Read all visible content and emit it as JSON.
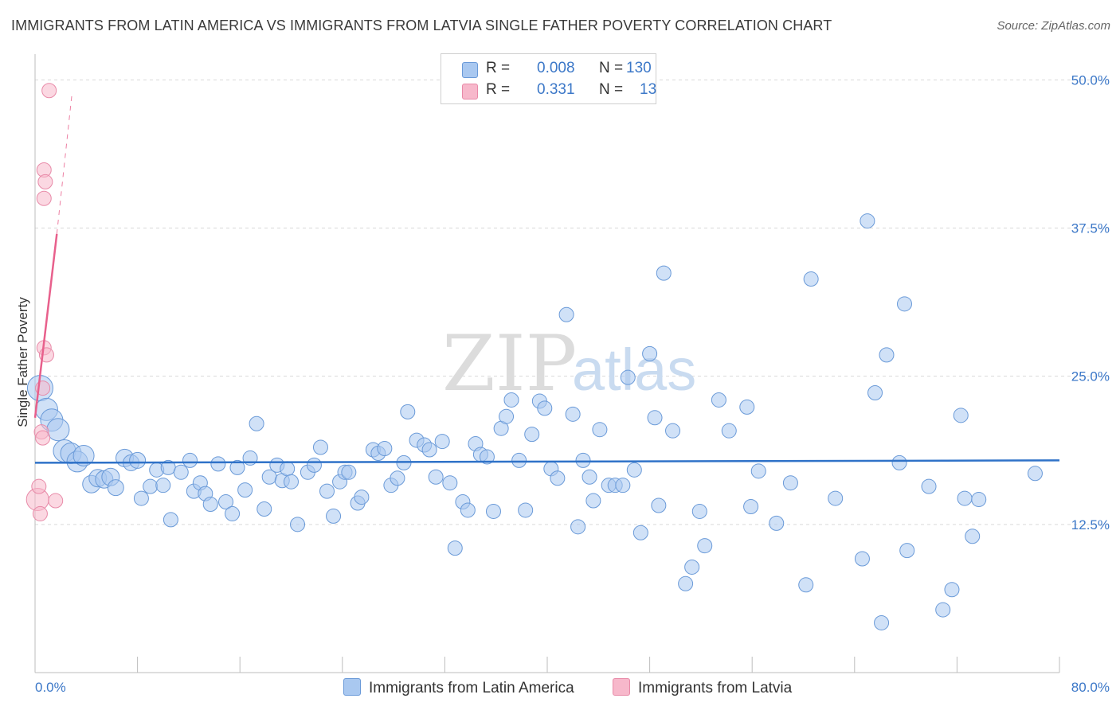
{
  "title": "IMMIGRANTS FROM LATIN AMERICA VS IMMIGRANTS FROM LATVIA SINGLE FATHER POVERTY CORRELATION CHART",
  "source": "Source: ZipAtlas.com",
  "watermark": {
    "zip": "ZIP",
    "atlas": "atlas"
  },
  "legend": {
    "rows": [
      {
        "r_label": "R =",
        "r_value": "0.008",
        "n_label": "N =",
        "n_value": "130",
        "color": "#a9c8f0"
      },
      {
        "r_label": "R =",
        "r_value": "0.331",
        "n_label": "N =",
        "n_value": "13",
        "color": "#f7b8cb"
      }
    ]
  },
  "bottom_legend": {
    "series1": "Immigrants from Latin America",
    "series2": "Immigrants from Latvia"
  },
  "chart_data": {
    "type": "scatter",
    "title": "IMMIGRANTS FROM LATIN AMERICA VS IMMIGRANTS FROM LATVIA SINGLE FATHER POVERTY CORRELATION CHART",
    "xlabel": "",
    "ylabel": "Single Father Poverty",
    "xlim": [
      0,
      80
    ],
    "ylim": [
      0,
      51.5
    ],
    "x_tick_labels": [
      "0.0%",
      "80.0%"
    ],
    "y_ticks": [
      12.5,
      25.0,
      37.5,
      50.0
    ],
    "y_tick_labels": [
      "12.5%",
      "25.0%",
      "37.5%",
      "50.0%"
    ],
    "grid": "horizontal dashed",
    "colors": {
      "blue_fill": "#a9c8f0",
      "blue_stroke": "#6a9ad8",
      "blue_line": "#2f72c8",
      "pink_fill": "#f7b8cb",
      "pink_stroke": "#e88aa8",
      "pink_line": "#e8608c",
      "tick_label": "#3c78c8"
    },
    "series": [
      {
        "name": "Immigrants from Latin America",
        "trend": {
          "x": [
            0,
            80
          ],
          "y": [
            17.7,
            17.9
          ]
        },
        "points": [
          [
            0.4,
            24.0,
            16
          ],
          [
            0.9,
            22.2,
            14
          ],
          [
            1.3,
            21.3,
            14
          ],
          [
            1.8,
            20.5,
            14
          ],
          [
            2.3,
            18.7,
            14
          ],
          [
            2.8,
            18.5,
            13
          ],
          [
            3.3,
            17.8,
            13
          ],
          [
            3.8,
            18.3,
            13
          ],
          [
            4.4,
            15.9,
            11
          ],
          [
            4.9,
            16.4,
            11
          ],
          [
            5.4,
            16.3,
            11
          ],
          [
            5.9,
            16.5,
            11
          ],
          [
            6.3,
            15.6,
            10
          ],
          [
            7.0,
            18.1,
            11
          ],
          [
            7.5,
            17.7,
            10
          ],
          [
            8.0,
            17.9,
            10
          ],
          [
            8.3,
            14.7,
            9
          ],
          [
            9.0,
            15.7,
            9
          ],
          [
            9.5,
            17.1,
            9
          ],
          [
            10.0,
            15.8,
            9
          ],
          [
            10.4,
            17.3,
            9
          ],
          [
            10.6,
            12.9,
            9
          ],
          [
            11.4,
            16.9,
            9
          ],
          [
            12.1,
            17.9,
            9
          ],
          [
            12.4,
            15.3,
            9
          ],
          [
            12.9,
            16.0,
            9
          ],
          [
            13.3,
            15.1,
            9
          ],
          [
            13.7,
            14.2,
            9
          ],
          [
            14.3,
            17.6,
            9
          ],
          [
            14.9,
            14.4,
            9
          ],
          [
            15.4,
            13.4,
            9
          ],
          [
            15.8,
            17.3,
            9
          ],
          [
            16.4,
            15.4,
            9
          ],
          [
            16.8,
            18.1,
            9
          ],
          [
            17.3,
            21.0,
            9
          ],
          [
            17.9,
            13.8,
            9
          ],
          [
            18.3,
            16.5,
            9
          ],
          [
            18.9,
            17.5,
            9
          ],
          [
            19.3,
            16.2,
            9
          ],
          [
            19.7,
            17.2,
            9
          ],
          [
            20.0,
            16.1,
            9
          ],
          [
            20.5,
            12.5,
            9
          ],
          [
            21.3,
            16.9,
            9
          ],
          [
            21.8,
            17.5,
            9
          ],
          [
            22.3,
            19.0,
            9
          ],
          [
            22.8,
            15.3,
            9
          ],
          [
            23.3,
            13.2,
            9
          ],
          [
            23.8,
            16.1,
            9
          ],
          [
            24.2,
            16.9,
            9
          ],
          [
            24.5,
            16.9,
            9
          ],
          [
            25.2,
            14.3,
            9
          ],
          [
            25.5,
            14.8,
            9
          ],
          [
            26.4,
            18.8,
            9
          ],
          [
            26.8,
            18.5,
            9
          ],
          [
            27.3,
            18.9,
            9
          ],
          [
            27.8,
            15.8,
            9
          ],
          [
            28.3,
            16.4,
            9
          ],
          [
            28.8,
            17.7,
            9
          ],
          [
            29.1,
            22.0,
            9
          ],
          [
            29.8,
            19.6,
            9
          ],
          [
            30.4,
            19.2,
            9
          ],
          [
            30.8,
            18.8,
            9
          ],
          [
            31.3,
            16.5,
            9
          ],
          [
            31.8,
            19.5,
            9
          ],
          [
            32.4,
            16.0,
            9
          ],
          [
            32.8,
            10.5,
            9
          ],
          [
            33.4,
            14.4,
            9
          ],
          [
            33.8,
            13.7,
            9
          ],
          [
            34.4,
            19.3,
            9
          ],
          [
            34.8,
            18.4,
            9
          ],
          [
            35.3,
            18.2,
            9
          ],
          [
            35.8,
            13.6,
            9
          ],
          [
            36.4,
            20.6,
            9
          ],
          [
            36.8,
            21.6,
            9
          ],
          [
            37.2,
            23.0,
            9
          ],
          [
            37.8,
            17.9,
            9
          ],
          [
            38.3,
            13.7,
            9
          ],
          [
            38.8,
            20.1,
            9
          ],
          [
            39.4,
            22.9,
            9
          ],
          [
            39.8,
            22.3,
            9
          ],
          [
            40.3,
            17.2,
            9
          ],
          [
            40.8,
            16.4,
            9
          ],
          [
            41.5,
            30.2,
            9
          ],
          [
            42.0,
            21.8,
            9
          ],
          [
            42.4,
            12.3,
            9
          ],
          [
            42.8,
            17.9,
            9
          ],
          [
            43.3,
            16.5,
            9
          ],
          [
            43.6,
            14.5,
            9
          ],
          [
            44.1,
            20.5,
            9
          ],
          [
            44.8,
            15.8,
            9
          ],
          [
            45.3,
            15.8,
            9
          ],
          [
            45.9,
            15.8,
            9
          ],
          [
            46.3,
            24.9,
            9
          ],
          [
            46.8,
            17.1,
            9
          ],
          [
            47.3,
            11.8,
            9
          ],
          [
            48.0,
            26.9,
            9
          ],
          [
            48.4,
            21.5,
            9
          ],
          [
            48.7,
            14.1,
            9
          ],
          [
            49.1,
            33.7,
            9
          ],
          [
            49.8,
            20.4,
            9
          ],
          [
            50.8,
            7.5,
            9
          ],
          [
            51.3,
            8.9,
            9
          ],
          [
            51.9,
            13.6,
            9
          ],
          [
            52.3,
            10.7,
            9
          ],
          [
            53.4,
            23.0,
            9
          ],
          [
            54.2,
            20.4,
            9
          ],
          [
            55.6,
            22.4,
            9
          ],
          [
            55.9,
            14.0,
            9
          ],
          [
            56.5,
            17.0,
            9
          ],
          [
            57.9,
            12.6,
            9
          ],
          [
            59.0,
            16.0,
            9
          ],
          [
            60.2,
            7.4,
            9
          ],
          [
            60.6,
            33.2,
            9
          ],
          [
            62.5,
            14.7,
            9
          ],
          [
            64.6,
            9.6,
            9
          ],
          [
            65.0,
            38.1,
            9
          ],
          [
            65.6,
            23.6,
            9
          ],
          [
            66.1,
            4.2,
            9
          ],
          [
            66.5,
            26.8,
            9
          ],
          [
            67.5,
            17.7,
            9
          ],
          [
            67.9,
            31.1,
            9
          ],
          [
            68.1,
            10.3,
            9
          ],
          [
            69.8,
            15.7,
            9
          ],
          [
            70.9,
            5.3,
            9
          ],
          [
            71.6,
            7.0,
            9
          ],
          [
            72.3,
            21.7,
            9
          ],
          [
            72.6,
            14.7,
            9
          ],
          [
            73.2,
            11.5,
            9
          ],
          [
            73.7,
            14.6,
            9
          ],
          [
            78.1,
            16.8,
            9
          ]
        ]
      },
      {
        "name": "Immigrants from Latvia",
        "trend": {
          "x": [
            0.0,
            1.7
          ],
          "y": [
            21.5,
            37.0
          ]
        },
        "trend_extended": {
          "x": [
            1.7,
            2.9
          ],
          "y": [
            37.0,
            49.0
          ]
        },
        "points": [
          [
            0.2,
            14.6,
            14
          ],
          [
            0.3,
            15.7,
            9
          ],
          [
            0.4,
            13.4,
            9
          ],
          [
            0.5,
            20.3,
            9
          ],
          [
            0.6,
            19.8,
            9
          ],
          [
            0.6,
            24.0,
            9
          ],
          [
            0.7,
            27.4,
            9
          ],
          [
            0.7,
            42.4,
            9
          ],
          [
            0.8,
            41.4,
            9
          ],
          [
            0.7,
            40.0,
            9
          ],
          [
            0.9,
            26.8,
            9
          ],
          [
            1.1,
            49.1,
            9
          ],
          [
            1.6,
            14.5,
            9
          ]
        ]
      }
    ]
  }
}
